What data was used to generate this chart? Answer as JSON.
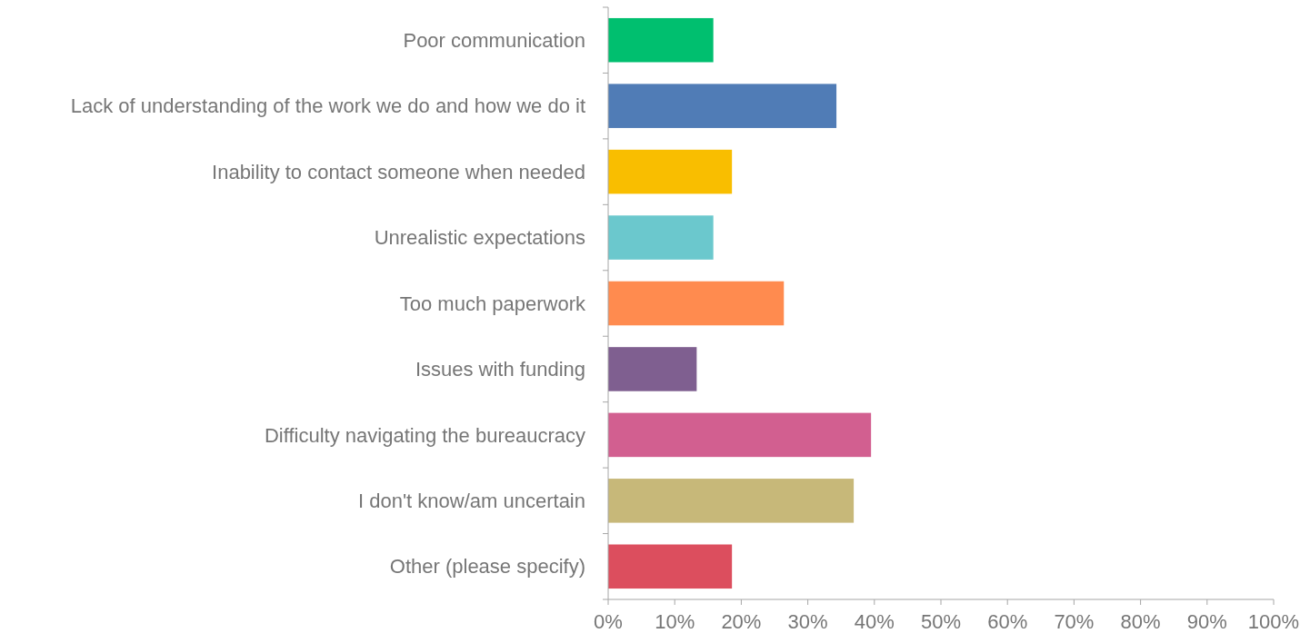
{
  "chart_data": {
    "type": "bar",
    "orientation": "horizontal",
    "categories": [
      "Poor communication",
      "Lack of understanding of the work we do and how we do it",
      "Inability to contact someone when needed",
      "Unrealistic expectations",
      "Too much paperwork",
      "Issues with funding",
      "Difficulty navigating the bureaucracy",
      "I don't know/am uncertain",
      "Other (please specify)"
    ],
    "values": [
      15.8,
      34.3,
      18.6,
      15.8,
      26.4,
      13.3,
      39.5,
      36.9,
      18.6
    ],
    "colors": [
      "#00bf6f",
      "#507cb6",
      "#f9be00",
      "#6bc8cd",
      "#ff8b4f",
      "#7f5f90",
      "#d25f90",
      "#c7b879",
      "#dc4e5e"
    ],
    "xlim": [
      0,
      100
    ],
    "xticks": [
      {
        "value": 0,
        "label": "0%"
      },
      {
        "value": 10,
        "label": "10%"
      },
      {
        "value": 20,
        "label": "20%"
      },
      {
        "value": 30,
        "label": "30%"
      },
      {
        "value": 40,
        "label": "40%"
      },
      {
        "value": 50,
        "label": "50%"
      },
      {
        "value": 60,
        "label": "60%"
      },
      {
        "value": 70,
        "label": "70%"
      },
      {
        "value": 80,
        "label": "80%"
      },
      {
        "value": 90,
        "label": "90%"
      },
      {
        "value": 100,
        "label": "100%"
      }
    ],
    "grid": false
  }
}
